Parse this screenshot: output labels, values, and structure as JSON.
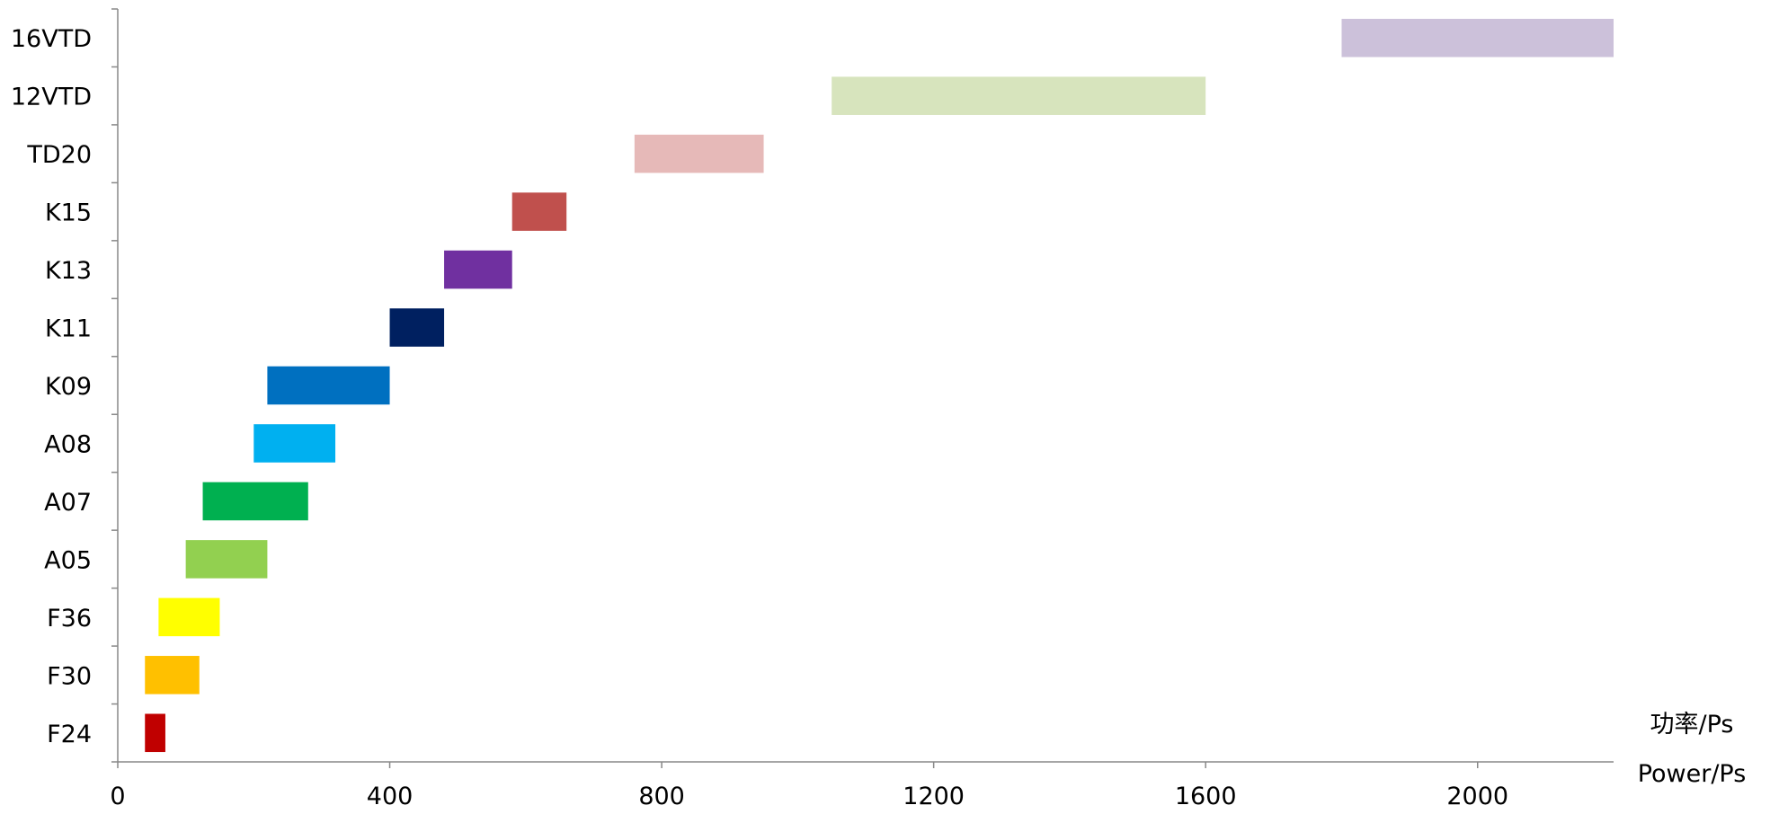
{
  "chart_data": {
    "type": "bar",
    "orientation": "horizontal-range",
    "categories": [
      "F24",
      "F30",
      "F36",
      "A05",
      "A07",
      "A08",
      "K09",
      "K11",
      "K13",
      "K15",
      "TD20",
      "12VTD",
      "16VTD"
    ],
    "ranges": [
      [
        40,
        70
      ],
      [
        40,
        120
      ],
      [
        60,
        150
      ],
      [
        100,
        220
      ],
      [
        125,
        280
      ],
      [
        200,
        320
      ],
      [
        220,
        400
      ],
      [
        400,
        480
      ],
      [
        480,
        580
      ],
      [
        580,
        660
      ],
      [
        760,
        950
      ],
      [
        1050,
        1600
      ],
      [
        1800,
        2200
      ]
    ],
    "colors": [
      "#C00000",
      "#FFC000",
      "#FFFF00",
      "#92D050",
      "#00B050",
      "#00B0F0",
      "#0070C0",
      "#002060",
      "#7030A0",
      "#C0504D",
      "#E6B9B8",
      "#D7E4BD",
      "#CCC1DA"
    ],
    "xlim": [
      0,
      2200
    ],
    "xticks": [
      "0",
      "400",
      "800",
      "1200",
      "1600",
      "2000"
    ],
    "xtick_values": [
      0,
      400,
      800,
      1200,
      1600,
      2000
    ],
    "xlabel_cn": "功率/Ps",
    "xlabel_en": "Power/Ps",
    "grid": false,
    "legend": "none"
  }
}
